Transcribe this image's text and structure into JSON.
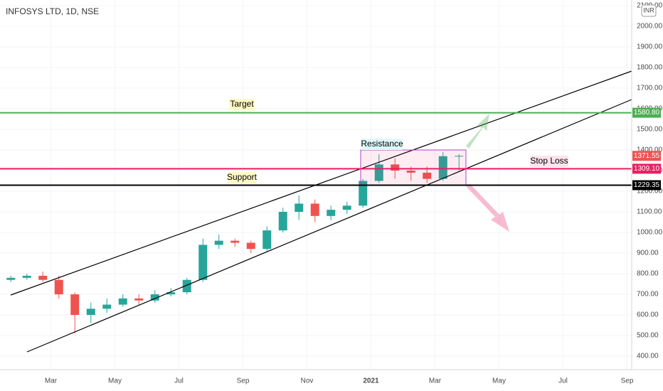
{
  "chart_data": {
    "type": "candlestick",
    "title": "INFOSYS LTD, 1D, NSE",
    "currency": "INR",
    "categories": [
      null,
      null,
      null,
      "Mar",
      null,
      null,
      null,
      "May",
      null,
      null,
      null,
      "Jul",
      null,
      null,
      null,
      "Sep",
      null,
      null,
      null,
      "Nov",
      null,
      null,
      null,
      "2021",
      null,
      null,
      null,
      "Mar",
      null,
      null,
      null,
      "May",
      null,
      null,
      null,
      "Jul",
      null,
      null,
      null,
      "Sep",
      null
    ],
    "open": [
      770,
      780,
      790,
      770,
      700,
      600,
      630,
      650,
      680,
      670,
      700,
      710,
      770,
      940,
      960,
      950,
      920,
      1010,
      1100,
      1140,
      1080,
      1110,
      1130,
      1250,
      1330,
      1300,
      1290,
      1260,
      1370,
      null,
      null,
      null,
      null,
      null,
      null,
      null,
      null,
      null,
      null,
      null,
      null
    ],
    "high": [
      790,
      800,
      810,
      790,
      710,
      660,
      680,
      700,
      700,
      720,
      730,
      780,
      970,
      990,
      970,
      960,
      1030,
      1120,
      1180,
      1160,
      1130,
      1150,
      1260,
      1380,
      1360,
      1320,
      1320,
      1390,
      1380,
      null,
      null,
      null,
      null,
      null,
      null,
      null,
      null,
      null,
      null,
      null,
      null
    ],
    "low": [
      760,
      770,
      760,
      680,
      510,
      560,
      610,
      640,
      650,
      660,
      690,
      700,
      760,
      920,
      930,
      900,
      910,
      1000,
      1060,
      1050,
      1060,
      1090,
      1120,
      1240,
      1260,
      1250,
      1240,
      1250,
      1300,
      null,
      null,
      null,
      null,
      null,
      null,
      null,
      null,
      null,
      null,
      null,
      null
    ],
    "close": [
      780,
      790,
      770,
      700,
      600,
      630,
      650,
      680,
      670,
      700,
      710,
      770,
      940,
      960,
      950,
      920,
      1010,
      1100,
      1140,
      1080,
      1110,
      1130,
      1250,
      1330,
      1300,
      1290,
      1260,
      1370,
      1371.55,
      null,
      null,
      null,
      null,
      null,
      null,
      null,
      null,
      null,
      null,
      null,
      null
    ],
    "up_color": "#26a69a",
    "down_color": "#ef5350",
    "ylim": [
      334.5,
      2127.6
    ],
    "yticks": [
      {
        "value": 400,
        "label": "400.00"
      },
      {
        "value": 500,
        "label": "500.00"
      },
      {
        "value": 600,
        "label": "600.00"
      },
      {
        "value": 700,
        "label": "700.00"
      },
      {
        "value": 800,
        "label": "800.00"
      },
      {
        "value": 900,
        "label": "900.00"
      },
      {
        "value": 1000,
        "label": "1000.00"
      },
      {
        "value": 1100,
        "label": "1100.00"
      },
      {
        "value": 1200,
        "label": "1200.00"
      },
      {
        "value": 1300,
        "label": "1300.00"
      },
      {
        "value": 1400,
        "label": "1400.00"
      },
      {
        "value": 1500,
        "label": "1500.00"
      },
      {
        "value": 1600,
        "label": "1600.00"
      },
      {
        "value": 1700,
        "label": "1700.00"
      },
      {
        "value": 1800,
        "label": "1800.00"
      },
      {
        "value": 1900,
        "label": "1900.00"
      },
      {
        "value": 2000,
        "label": "2000.00"
      },
      {
        "value": 2100,
        "label": "2100.00"
      }
    ],
    "grid": true,
    "levels": [
      {
        "value": 1580.8,
        "label": "1580.80",
        "color": "#4caf50",
        "line": true
      },
      {
        "value": 1371.55,
        "label": "1371.55",
        "color": "#ef5350",
        "line": false
      },
      {
        "value": 1309.1,
        "label": "1309.10",
        "color": "#e91e63",
        "line": true
      },
      {
        "value": 1229.35,
        "label": "1229.35",
        "color": "#000000",
        "line": true
      }
    ],
    "annotations": {
      "target": "Target",
      "resistance": "Resistance",
      "support": "Support",
      "stop_loss": "Stop Loss"
    }
  }
}
